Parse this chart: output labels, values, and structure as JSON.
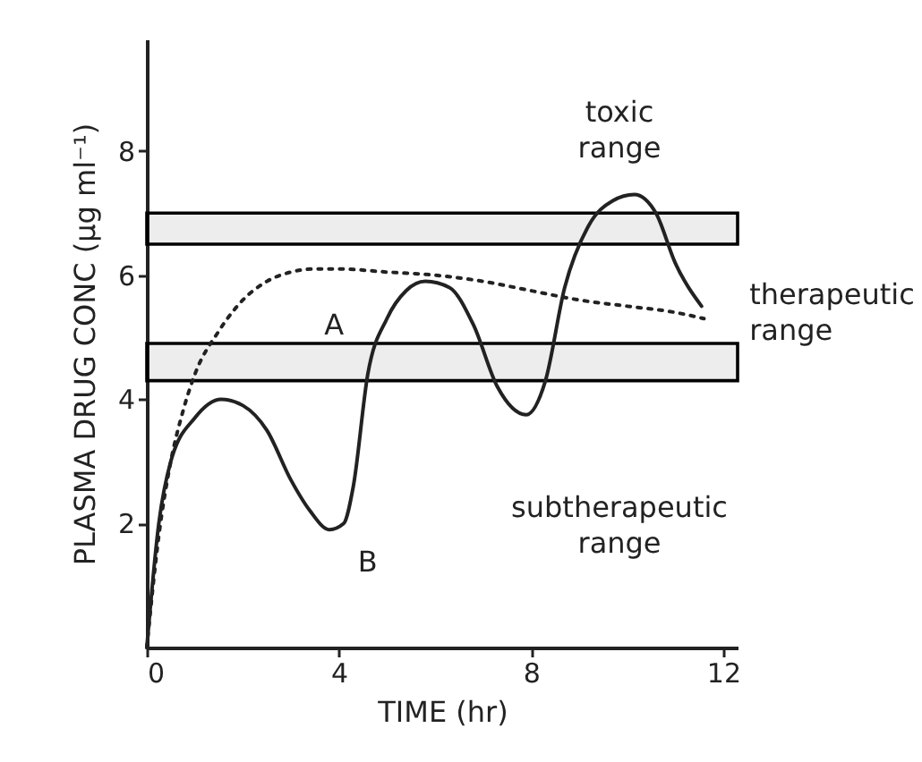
{
  "chart_data": {
    "type": "line",
    "xlabel": "TIME (hr)",
    "ylabel": "PLASMA DRUG CONC (μg ml⁻¹)",
    "xlim": [
      0,
      12.3
    ],
    "ylim": [
      0,
      9.8
    ],
    "xticks": [
      0,
      4,
      8,
      12
    ],
    "yticks": [
      2,
      4,
      6,
      8
    ],
    "grid": false,
    "marker": "none",
    "series": [
      {
        "color": "#222222",
        "line_style": "dotted",
        "x": [
          0,
          0.25,
          0.5,
          0.75,
          1,
          1.5,
          2,
          2.5,
          3,
          3.5,
          4,
          5,
          6,
          7,
          8,
          9,
          10,
          11,
          11.6
        ],
        "values": [
          0,
          1.8,
          3.0,
          3.8,
          4.4,
          5.1,
          5.6,
          5.9,
          6.05,
          6.1,
          6.1,
          6.05,
          6.0,
          5.9,
          5.75,
          5.6,
          5.5,
          5.4,
          5.3
        ]
      },
      {
        "color": "#222222",
        "line_style": "solid",
        "x": [
          0,
          0.25,
          0.5,
          1,
          1.55,
          2,
          2.5,
          3,
          3.4,
          3.8,
          4.1,
          4.3,
          4.6,
          5,
          5.4,
          5.8,
          6.3,
          6.8,
          7.3,
          7.9,
          8.3,
          8.7,
          9.2,
          9.7,
          10.15,
          10.6,
          11,
          11.55
        ],
        "values": [
          0,
          2.0,
          3.0,
          3.7,
          4.0,
          3.9,
          3.5,
          2.7,
          2.2,
          1.9,
          2.0,
          2.6,
          4.4,
          5.3,
          5.75,
          5.9,
          5.8,
          5.2,
          4.2,
          3.75,
          4.3,
          5.8,
          6.8,
          7.2,
          7.3,
          7.0,
          6.2,
          5.5
        ]
      }
    ],
    "bands": [
      {
        "axis": "y",
        "from": 6.5,
        "to": 7.0,
        "color": "#000000"
      },
      {
        "axis": "y",
        "from": 4.3,
        "to": 4.9,
        "color": "#000000"
      }
    ],
    "annotations": [
      "A",
      "B",
      "toxic\nrange",
      "therapeutic\nrange",
      "subtherapeutic\nrange"
    ]
  }
}
